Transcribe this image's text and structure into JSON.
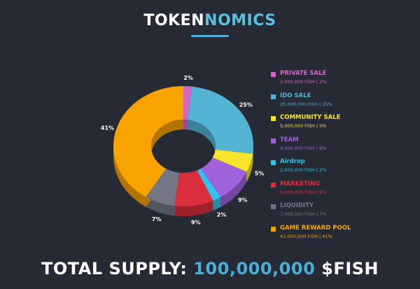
{
  "header": {
    "title_part1": "TOKEN",
    "title_part2": "NOMICS"
  },
  "colors": {
    "background": "#262a35",
    "accent": "#4aaed6"
  },
  "chart_data": {
    "type": "pie",
    "style": "3d-donut",
    "title": "TOKENNOMICS",
    "series": [
      {
        "name": "PRIVATE SALE",
        "value": 2,
        "label": "2%",
        "detail": "2,000,000 FISH | 2%",
        "color": "#d764c8"
      },
      {
        "name": "IDO SALE",
        "value": 25,
        "label": "25%",
        "detail": "25,000,000 FISH | 25%",
        "color": "#54b4d3"
      },
      {
        "name": "COMMUNITY SALE",
        "value": 5,
        "label": "5%",
        "detail": "5,000,000 FISH | 5%",
        "color": "#f6e52a"
      },
      {
        "name": "TEAM",
        "value": 9,
        "label": "9%",
        "detail": "9,000,000 FISH | 9%",
        "color": "#a062dd"
      },
      {
        "name": "Airdrop",
        "value": 2,
        "label": "2%",
        "detail": "2,000,000 FISH | 2%",
        "color": "#33c2ea"
      },
      {
        "name": "MARKETING",
        "value": 9,
        "label": "9%",
        "detail": "9,000,000 FISH | 9%",
        "color": "#dc2f3d"
      },
      {
        "name": "LIQUIDITY",
        "value": 7,
        "label": "7%",
        "detail": "7,000,000 FISH | 7%",
        "color": "#737884"
      },
      {
        "name": "GAME REWARD POOL",
        "value": 41,
        "label": "41%",
        "detail": "41,000,000 FISH | 41%",
        "color": "#f9a300"
      }
    ]
  },
  "footer": {
    "total_label": "TOTAL SUPPLY:",
    "total_value": "100,000,000",
    "total_unit": "$FISH"
  }
}
